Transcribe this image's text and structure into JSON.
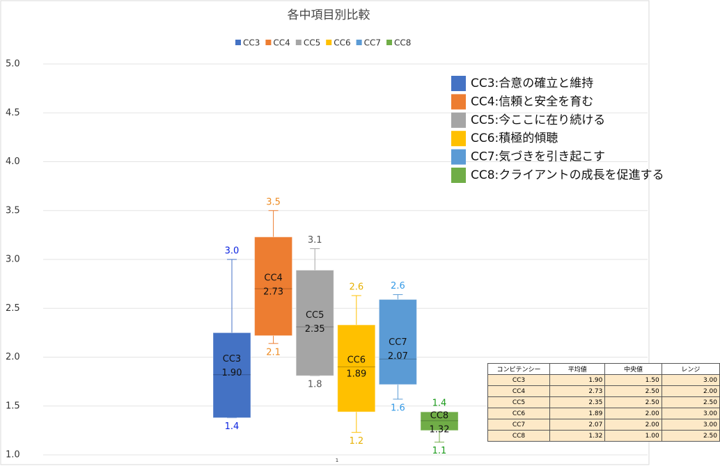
{
  "chart_data": {
    "type": "box",
    "title": "各中項目別比較",
    "categories": [
      "1"
    ],
    "ylim": [
      1,
      5
    ],
    "yticks": [
      {
        "value": 1,
        "label": "1.0"
      },
      {
        "value": 1.5,
        "label": "1.5"
      },
      {
        "value": 2,
        "label": "2.0"
      },
      {
        "value": 2.5,
        "label": "2.5"
      },
      {
        "value": 3,
        "label": "3.0"
      },
      {
        "value": 3.5,
        "label": "3.5"
      },
      {
        "value": 4,
        "label": "4.0"
      },
      {
        "value": 4.5,
        "label": "4.5"
      },
      {
        "value": 5,
        "label": "5.0"
      }
    ],
    "grid": true,
    "legend": "top",
    "series": [
      {
        "name": "CC3",
        "color": "#4472c4",
        "label_color": "#0a22e0",
        "min": 1.38,
        "q1": 1.38,
        "median": 1.82,
        "q3": 2.25,
        "max": 3.0,
        "mean": 1.9,
        "min_label": "1.4",
        "max_label": "3.0",
        "mean_label": "1.90"
      },
      {
        "name": "CC4",
        "color": "#ed7d31",
        "label_color": "#ed8a20",
        "min": 2.14,
        "q1": 2.22,
        "median": 2.7,
        "q3": 3.23,
        "max": 3.5,
        "mean": 2.73,
        "min_label": "2.1",
        "max_label": "3.5",
        "mean_label": "2.73"
      },
      {
        "name": "CC5",
        "color": "#a5a5a5",
        "label_color": "#555555",
        "min": 1.81,
        "q1": 1.81,
        "median": 2.31,
        "q3": 2.89,
        "max": 3.11,
        "mean": 2.35,
        "min_label": "1.8",
        "max_label": "3.1",
        "mean_label": "2.35"
      },
      {
        "name": "CC6",
        "color": "#ffc000",
        "label_color": "#e6b000",
        "min": 1.23,
        "q1": 1.44,
        "median": 1.9,
        "q3": 2.33,
        "max": 2.63,
        "mean": 1.89,
        "min_label": "1.2",
        "max_label": "2.6",
        "mean_label": "1.89"
      },
      {
        "name": "CC7",
        "color": "#5b9bd5",
        "label_color": "#3399e6",
        "min": 1.57,
        "q1": 1.72,
        "median": 1.98,
        "q3": 2.59,
        "max": 2.64,
        "mean": 2.07,
        "min_label": "1.6",
        "max_label": "2.6",
        "mean_label": "2.07"
      },
      {
        "name": "CC8",
        "color": "#70ad47",
        "label_color": "#1a9a1a",
        "min": 1.13,
        "q1": 1.25,
        "median": 1.35,
        "q3": 1.44,
        "max": 1.44,
        "mean": 1.32,
        "min_label": "1.1",
        "max_label": "1.4",
        "mean_label": "1.32"
      }
    ],
    "annotations": [
      "CC3:合意の確立と維持",
      "CC4:信頼と安全を育む",
      "CC5:今ここに在り続ける",
      "CC6:積極的傾聴",
      "CC7:気づきを引き起こす",
      "CC8:クライアントの成長を促進する"
    ]
  },
  "table": {
    "header": [
      "コンピテンシー",
      "平均値",
      "中央値",
      "レンジ"
    ],
    "rows": [
      [
        "CC3",
        "1.90",
        "1.50",
        "3.00"
      ],
      [
        "CC4",
        "2.73",
        "2.50",
        "2.00"
      ],
      [
        "CC5",
        "2.35",
        "2.50",
        "2.50"
      ],
      [
        "CC6",
        "1.89",
        "2.00",
        "3.00"
      ],
      [
        "CC7",
        "2.07",
        "2.00",
        "3.00"
      ],
      [
        "CC8",
        "1.32",
        "1.00",
        "2.50"
      ]
    ]
  }
}
